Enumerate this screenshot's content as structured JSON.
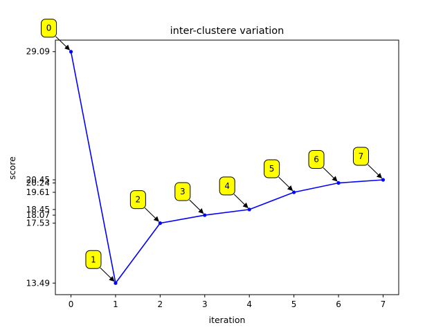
{
  "chart_data": {
    "type": "line",
    "title": "inter-clustere variation",
    "xlabel": "iteration",
    "ylabel": "score",
    "x": [
      0,
      1,
      2,
      3,
      4,
      5,
      6,
      7
    ],
    "xticks": [
      "0",
      "1",
      "2",
      "3",
      "4",
      "5",
      "6",
      "7"
    ],
    "yticks": [
      13.49,
      17.53,
      18.07,
      18.45,
      19.61,
      20.24,
      20.45,
      29.09
    ],
    "ytick_labels": [
      "13.49",
      "17.53",
      "18.07",
      "18.45",
      "19.61",
      "20.24",
      "20.45",
      "29.09"
    ],
    "series": [
      {
        "values": [
          29.09,
          13.49,
          17.53,
          18.07,
          18.45,
          19.61,
          20.24,
          20.45
        ],
        "color": "#0000ff",
        "marker": "dot"
      }
    ],
    "annotations": [
      "0",
      "1",
      "2",
      "3",
      "4",
      "5",
      "6",
      "7"
    ],
    "annotation_style": {
      "box_color": "#ffff00",
      "arrow": "black"
    },
    "xlim": [
      -0.35,
      7.35
    ],
    "ylim": [
      12.71,
      29.87
    ],
    "grid": false,
    "legend": "none"
  }
}
